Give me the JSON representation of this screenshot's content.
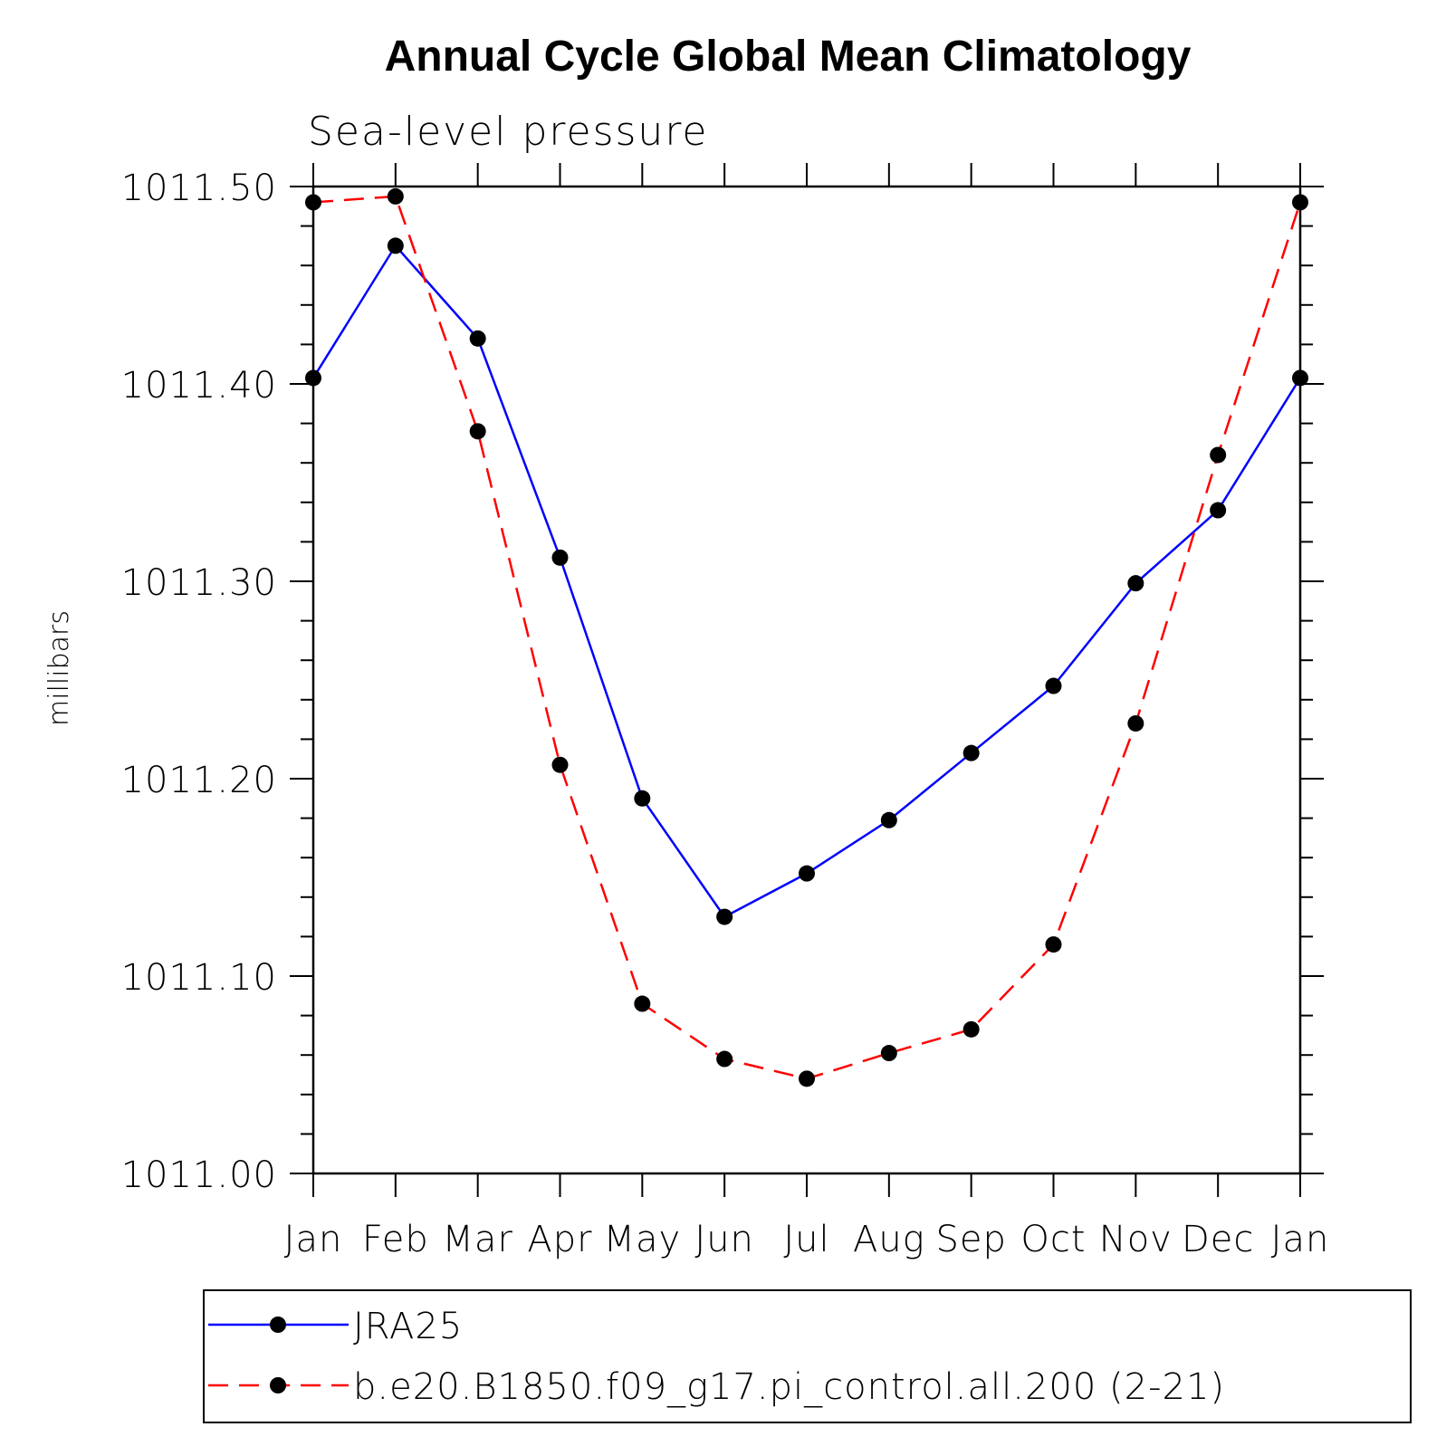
{
  "chart_data": {
    "type": "line",
    "title": "Annual Cycle Global Mean Climatology",
    "subtitle": "Sea-level pressure",
    "xlabel": "",
    "ylabel": "millibars",
    "categories": [
      "Jan",
      "Feb",
      "Mar",
      "Apr",
      "May",
      "Jun",
      "Jul",
      "Aug",
      "Sep",
      "Oct",
      "Nov",
      "Dec",
      "Jan"
    ],
    "ylim": [
      1011.0,
      1011.5
    ],
    "yticks": [
      "1011.00",
      "1011.10",
      "1011.20",
      "1011.30",
      "1011.40",
      "1011.50"
    ],
    "ytick_values": [
      1011.0,
      1011.1,
      1011.2,
      1011.3,
      1011.4,
      1011.5
    ],
    "grid": false,
    "legend_position": "bottom",
    "series": [
      {
        "name": "JRA25",
        "color": "#0000ff",
        "line_style": "solid",
        "marker": "filled-circle",
        "marker_color": "#000000",
        "values": [
          1011.403,
          1011.47,
          1011.423,
          1011.312,
          1011.19,
          1011.13,
          1011.152,
          1011.179,
          1011.213,
          1011.247,
          1011.299,
          1011.336,
          1011.403
        ]
      },
      {
        "name": "b.e20.B1850.f09_g17.pi_control.all.200 (2-21)",
        "color": "#ff0000",
        "line_style": "dashed",
        "marker": "filled-circle",
        "marker_color": "#000000",
        "values": [
          1011.492,
          1011.495,
          1011.376,
          1011.207,
          1011.086,
          1011.058,
          1011.048,
          1011.061,
          1011.073,
          1011.116,
          1011.228,
          1011.364,
          1011.492
        ]
      }
    ]
  }
}
